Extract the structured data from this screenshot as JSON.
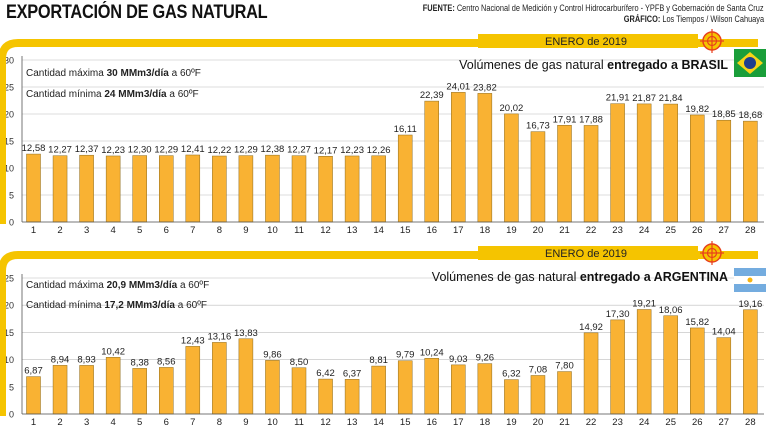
{
  "header": {
    "title": "EXPORTACIÓN DE GAS NATURAL",
    "source_label": "FUENTE:",
    "source_text": "Centro Nacional de Medición y Control Hidrocarburífero - YPFB y Gobernación de Santa Cruz",
    "graphic_label": "GRÁFICO:",
    "graphic_text": "Los Tiempos / Wilson Cahuaya"
  },
  "colors": {
    "bar": "#f9b233",
    "bar_stroke": "#8a6a1e",
    "accent": "#f5c400",
    "target": "#e8401c"
  },
  "chart_data": [
    {
      "type": "bar",
      "month_label": "ENERO de 2019",
      "title_prefix": "Volúmenes de gas natural ",
      "title_bold": "entregado a BRASIL",
      "flag_icon": "brazil-flag-icon",
      "max_note": {
        "prefix": "Cantidad máxima ",
        "bold": "30 MMm3/día",
        "suffix": " a 60ºF"
      },
      "min_note": {
        "prefix": "Cantidad mínima ",
        "bold": "24 MMm3/día",
        "suffix": " a 60ºF"
      },
      "ylim": [
        0,
        30
      ],
      "yticks": [
        "0",
        "5",
        "10",
        "15",
        "20",
        "25",
        "30"
      ],
      "categories": [
        "1",
        "2",
        "3",
        "4",
        "5",
        "6",
        "7",
        "8",
        "9",
        "10",
        "11",
        "12",
        "13",
        "14",
        "15",
        "16",
        "17",
        "18",
        "19",
        "20",
        "21",
        "22",
        "23",
        "24",
        "25",
        "26",
        "27",
        "28"
      ],
      "values": [
        12.58,
        12.27,
        12.37,
        12.23,
        12.3,
        12.29,
        12.41,
        12.22,
        12.29,
        12.38,
        12.27,
        12.17,
        12.23,
        12.26,
        16.11,
        22.39,
        24.01,
        23.82,
        20.02,
        16.73,
        17.91,
        17.88,
        21.91,
        21.87,
        21.84,
        19.82,
        18.85,
        18.68
      ],
      "labels": [
        "12,58",
        "12,27",
        "12,37",
        "12,23",
        "12,30",
        "12,29",
        "12,41",
        "12,22",
        "12,29",
        "12,38",
        "12,27",
        "12,17",
        "12,23",
        "12,26",
        "16,11",
        "22,39",
        "24,01",
        "23,82",
        "20,02",
        "16,73",
        "17,91",
        "17,88",
        "21,91",
        "21,87",
        "21,84",
        "19,82",
        "18,85",
        "18,68"
      ],
      "grid": true
    },
    {
      "type": "bar",
      "month_label": "ENERO de 2019",
      "title_prefix": "Volúmenes de gas natural ",
      "title_bold": "entregado a ARGENTINA",
      "flag_icon": "argentina-flag-icon",
      "max_note": {
        "prefix": "Cantidad máxima ",
        "bold": "20,9 MMm3/día",
        "suffix": " a 60ºF"
      },
      "min_note": {
        "prefix": "Cantidad mínima ",
        "bold": "17,2 MMm3/día",
        "suffix": " a 60ºF"
      },
      "ylim": [
        0,
        25
      ],
      "yticks": [
        "0",
        "5",
        "10",
        "15",
        "20",
        "25"
      ],
      "categories": [
        "1",
        "2",
        "3",
        "4",
        "5",
        "6",
        "7",
        "8",
        "9",
        "10",
        "11",
        "12",
        "13",
        "14",
        "15",
        "16",
        "17",
        "18",
        "19",
        "20",
        "21",
        "22",
        "23",
        "24",
        "25",
        "26",
        "27",
        "28"
      ],
      "values": [
        6.87,
        8.94,
        8.93,
        10.42,
        8.38,
        8.56,
        12.43,
        13.16,
        13.83,
        9.86,
        8.5,
        6.42,
        6.37,
        8.81,
        9.79,
        10.24,
        9.03,
        9.26,
        6.32,
        7.08,
        7.8,
        14.92,
        17.3,
        19.21,
        18.06,
        15.82,
        14.04,
        19.16
      ],
      "labels": [
        "6,87",
        "8,94",
        "8,93",
        "10,42",
        "8,38",
        "8,56",
        "12,43",
        "13,16",
        "13,83",
        "9,86",
        "8,50",
        "6,42",
        "6,37",
        "8,81",
        "9,79",
        "10,24",
        "9,03",
        "9,26",
        "6,32",
        "7,08",
        "7,80",
        "14,92",
        "17,30",
        "19,21",
        "18,06",
        "15,82",
        "14,04",
        "19,16"
      ],
      "grid": true
    }
  ]
}
